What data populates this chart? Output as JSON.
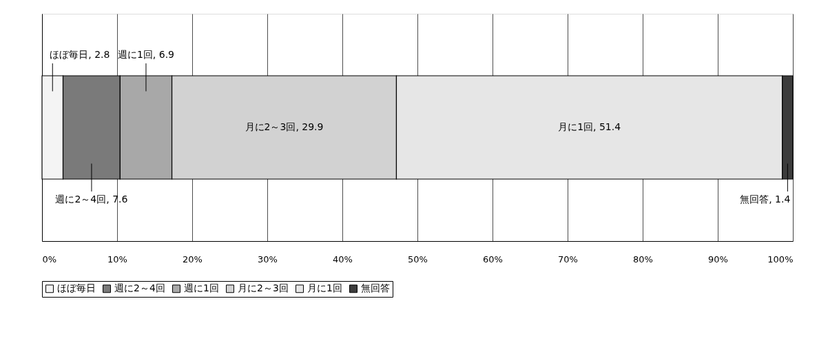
{
  "chart_data": {
    "type": "bar",
    "orientation": "horizontal",
    "stacked": true,
    "categories": [
      null
    ],
    "series": [
      {
        "name": "ほぼ毎日",
        "color": "#f4f4f4",
        "values": [
          2.8
        ],
        "value_labels": [
          "ほぼ毎日, 2.8"
        ]
      },
      {
        "name": "週に2～4回",
        "color": "#7a7a7a",
        "values": [
          7.6
        ],
        "value_labels": [
          "週に2～4回, 7.6"
        ]
      },
      {
        "name": "週に1回",
        "color": "#a8a8a8",
        "values": [
          6.9
        ],
        "value_labels": [
          "週に1回, 6.9"
        ]
      },
      {
        "name": "月に2～3回",
        "color": "#d2d2d2",
        "values": [
          29.9
        ],
        "value_labels": [
          "月に2～3回, 29.9"
        ]
      },
      {
        "name": "月に1回",
        "color": "#e6e6e6",
        "values": [
          51.4
        ],
        "value_labels": [
          "月に1回, 51.4"
        ]
      },
      {
        "name": "無回答",
        "color": "#3c3c3c",
        "values": [
          1.4
        ],
        "value_labels": [
          "無回答, 1.4"
        ]
      }
    ],
    "xlim": [
      0,
      100
    ],
    "xticks": [
      {
        "value": 0,
        "label": "0%"
      },
      {
        "value": 10,
        "label": "10%"
      },
      {
        "value": 20,
        "label": "20%"
      },
      {
        "value": 30,
        "label": "30%"
      },
      {
        "value": 40,
        "label": "40%"
      },
      {
        "value": 50,
        "label": "50%"
      },
      {
        "value": 60,
        "label": "60%"
      },
      {
        "value": 70,
        "label": "70%"
      },
      {
        "value": 80,
        "label": "80%"
      },
      {
        "value": 90,
        "label": "90%"
      },
      {
        "value": 100,
        "label": "100%"
      }
    ],
    "grid": "x",
    "legend": "bottom"
  }
}
